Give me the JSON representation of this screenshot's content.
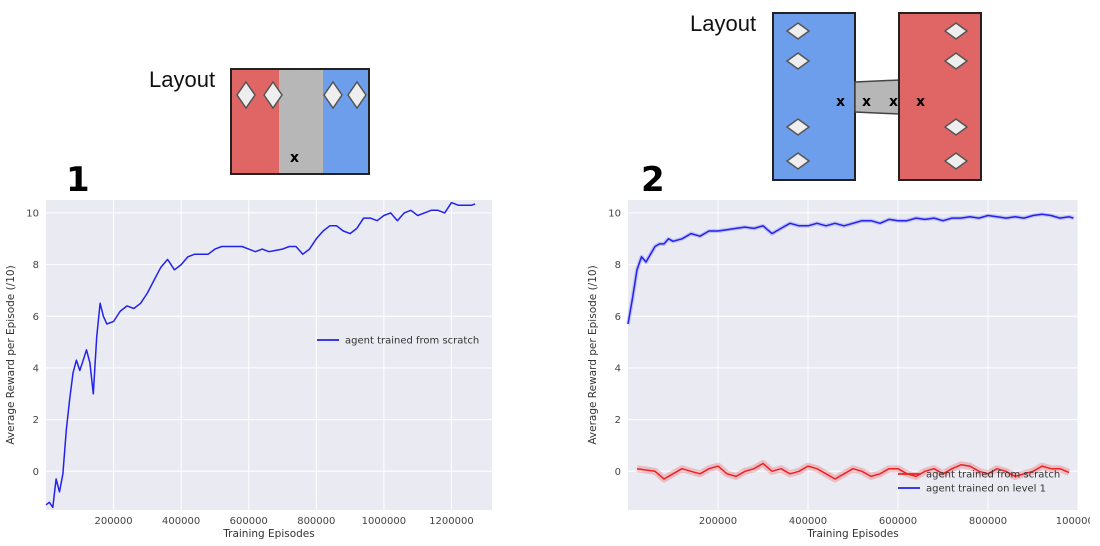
{
  "layout_label": "Layout",
  "layouts": [
    {
      "marker_labels": [
        "x"
      ]
    },
    {
      "marker_labels": [
        "x",
        "x",
        "x",
        "x"
      ]
    }
  ],
  "colors": {
    "red_room": "#e06666",
    "blue_room": "#6d9eeb",
    "grey_corridor": "#b7b7b7",
    "plot_bg": "#eaeaf2",
    "blue_line": "#2222ee",
    "red_line": "#ee2222"
  },
  "chart_data": [
    {
      "panel_label": "1",
      "type": "line",
      "xlabel": "Training Episodes",
      "ylabel": "Average Reward per Episode (/10)",
      "xlim": [
        0,
        1320000
      ],
      "ylim": [
        -1.5,
        10.5
      ],
      "xticks": [
        200000,
        400000,
        600000,
        800000,
        1000000,
        1200000
      ],
      "xtick_labels": [
        "200000",
        "400000",
        "600000",
        "800000",
        "1000000",
        "1200000"
      ],
      "yticks": [
        0,
        2,
        4,
        6,
        8,
        10
      ],
      "ytick_labels": [
        "0",
        "2",
        "4",
        "6",
        "8",
        "10"
      ],
      "legend_position": "right",
      "series": [
        {
          "name": "agent trained from scratch",
          "color": "#2222ee",
          "x": [
            0,
            10000,
            20000,
            30000,
            40000,
            50000,
            60000,
            70000,
            80000,
            90000,
            100000,
            110000,
            120000,
            130000,
            140000,
            150000,
            160000,
            170000,
            180000,
            200000,
            220000,
            240000,
            260000,
            280000,
            300000,
            320000,
            340000,
            360000,
            380000,
            400000,
            420000,
            440000,
            460000,
            480000,
            500000,
            520000,
            540000,
            560000,
            580000,
            600000,
            620000,
            640000,
            660000,
            680000,
            700000,
            720000,
            740000,
            760000,
            780000,
            800000,
            820000,
            840000,
            860000,
            880000,
            900000,
            920000,
            940000,
            960000,
            980000,
            1000000,
            1020000,
            1040000,
            1060000,
            1080000,
            1100000,
            1120000,
            1140000,
            1160000,
            1180000,
            1200000,
            1220000,
            1240000,
            1260000,
            1270000
          ],
          "y": [
            -1.3,
            -1.2,
            -1.4,
            -0.3,
            -0.8,
            -0.1,
            1.6,
            2.8,
            3.8,
            4.3,
            3.9,
            4.3,
            4.7,
            4.2,
            3.0,
            5.2,
            6.5,
            6.0,
            5.7,
            5.8,
            6.2,
            6.4,
            6.3,
            6.5,
            6.9,
            7.4,
            7.9,
            8.2,
            7.8,
            8.0,
            8.3,
            8.4,
            8.4,
            8.4,
            8.6,
            8.7,
            8.7,
            8.7,
            8.7,
            8.6,
            8.5,
            8.6,
            8.5,
            8.55,
            8.6,
            8.7,
            8.7,
            8.4,
            8.6,
            9.0,
            9.3,
            9.5,
            9.5,
            9.3,
            9.2,
            9.4,
            9.8,
            9.8,
            9.7,
            9.9,
            10.0,
            9.7,
            10.0,
            10.1,
            9.9,
            10.0,
            10.1,
            10.1,
            10.0,
            10.4,
            10.3,
            10.3,
            10.3,
            10.35
          ]
        }
      ]
    },
    {
      "panel_label": "2",
      "type": "line",
      "xlabel": "Training Episodes",
      "ylabel": "Average Reward per Episode (/10)",
      "xlim": [
        0,
        1000000
      ],
      "ylim": [
        -1.5,
        10.5
      ],
      "xticks": [
        200000,
        400000,
        600000,
        800000,
        1000000
      ],
      "xtick_labels": [
        "200000",
        "400000",
        "600000",
        "800000",
        "1000000"
      ],
      "yticks": [
        0,
        2,
        4,
        6,
        8,
        10
      ],
      "ytick_labels": [
        "0",
        "2",
        "4",
        "6",
        "8",
        "10"
      ],
      "legend_position": "lower right",
      "series": [
        {
          "name": "agent trained from scratch",
          "color": "#ee2222",
          "x": [
            20000,
            40000,
            60000,
            80000,
            100000,
            120000,
            140000,
            160000,
            180000,
            200000,
            220000,
            240000,
            260000,
            280000,
            300000,
            320000,
            340000,
            360000,
            380000,
            400000,
            420000,
            440000,
            460000,
            480000,
            500000,
            520000,
            540000,
            560000,
            580000,
            600000,
            620000,
            640000,
            660000,
            680000,
            700000,
            720000,
            740000,
            760000,
            780000,
            800000,
            820000,
            840000,
            860000,
            880000,
            900000,
            920000,
            940000,
            960000,
            980000
          ],
          "y": [
            0.1,
            0.05,
            0.0,
            -0.3,
            -0.1,
            0.1,
            0.0,
            -0.1,
            0.1,
            0.2,
            -0.1,
            -0.2,
            0.0,
            0.1,
            0.3,
            0.0,
            0.1,
            -0.1,
            0.0,
            0.2,
            0.1,
            -0.1,
            -0.3,
            -0.1,
            0.1,
            0.0,
            -0.2,
            -0.1,
            0.1,
            0.1,
            -0.1,
            -0.2,
            0.0,
            0.1,
            -0.1,
            0.1,
            0.25,
            0.2,
            0.0,
            -0.1,
            0.1,
            0.0,
            -0.2,
            -0.1,
            0.0,
            0.2,
            0.1,
            0.1,
            -0.05
          ]
        },
        {
          "name": "agent trained on level 1",
          "color": "#2222ee",
          "x": [
            0,
            10000,
            20000,
            30000,
            40000,
            50000,
            60000,
            70000,
            80000,
            90000,
            100000,
            120000,
            140000,
            160000,
            180000,
            200000,
            220000,
            240000,
            260000,
            280000,
            300000,
            320000,
            340000,
            360000,
            380000,
            400000,
            420000,
            440000,
            460000,
            480000,
            500000,
            520000,
            540000,
            560000,
            580000,
            600000,
            620000,
            640000,
            660000,
            680000,
            700000,
            720000,
            740000,
            760000,
            780000,
            800000,
            820000,
            840000,
            860000,
            880000,
            900000,
            920000,
            940000,
            960000,
            980000,
            990000
          ],
          "y": [
            5.7,
            6.7,
            7.8,
            8.3,
            8.1,
            8.4,
            8.7,
            8.8,
            8.8,
            9.0,
            8.9,
            9.0,
            9.2,
            9.1,
            9.3,
            9.3,
            9.35,
            9.4,
            9.45,
            9.4,
            9.5,
            9.2,
            9.4,
            9.6,
            9.5,
            9.5,
            9.6,
            9.5,
            9.6,
            9.5,
            9.6,
            9.7,
            9.7,
            9.6,
            9.75,
            9.7,
            9.7,
            9.8,
            9.75,
            9.8,
            9.7,
            9.8,
            9.8,
            9.85,
            9.8,
            9.9,
            9.85,
            9.8,
            9.85,
            9.8,
            9.9,
            9.95,
            9.9,
            9.8,
            9.85,
            9.8
          ]
        }
      ]
    }
  ]
}
